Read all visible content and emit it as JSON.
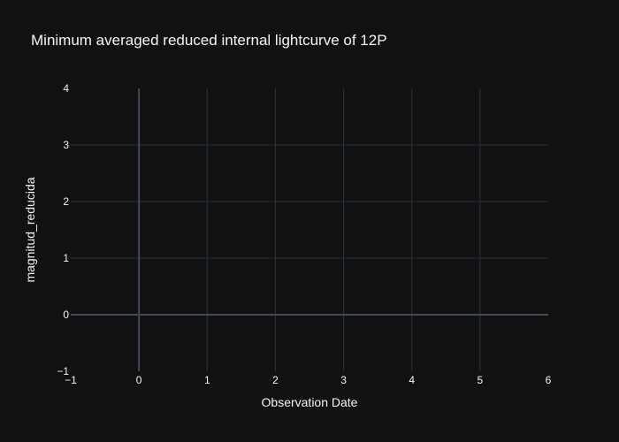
{
  "chart_data": {
    "type": "scatter",
    "title": "Minimum averaged reduced internal lightcurve of 12P",
    "xlabel": "Observation Date",
    "ylabel": "magnitud_reducida",
    "xlim": [
      -1,
      6
    ],
    "ylim": [
      -1,
      4
    ],
    "x_ticks": [
      -1,
      0,
      1,
      2,
      3,
      4,
      5,
      6
    ],
    "y_ticks": [
      -1,
      0,
      1,
      2,
      3,
      4
    ],
    "x_tick_labels": [
      "−1",
      "0",
      "1",
      "2",
      "3",
      "4",
      "5",
      "6"
    ],
    "y_tick_labels": [
      "−1",
      "0",
      "1",
      "2",
      "3",
      "4"
    ],
    "grid": true,
    "series": []
  },
  "colors": {
    "background": "#111111",
    "grid": "#283442",
    "zeroline": "#3d4a58",
    "text": "#f2f5fa"
  }
}
